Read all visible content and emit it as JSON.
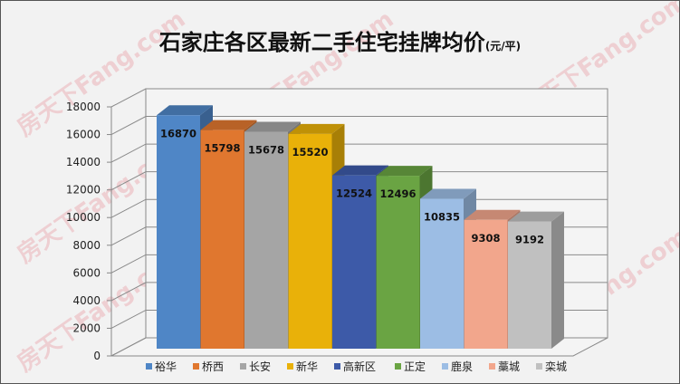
{
  "watermark": "房天下Fang.com",
  "chart_data": {
    "type": "bar",
    "title": "石家庄各区最新二手住宅挂牌均价",
    "unit": "(元/平)",
    "categories": [
      "裕华",
      "桥西",
      "长安",
      "新华",
      "高新区",
      "正定",
      "鹿泉",
      "藁城",
      "栾城"
    ],
    "values": [
      16870,
      15798,
      15678,
      15520,
      12524,
      12496,
      10835,
      9308,
      9192
    ],
    "colors": [
      "#4f86c6",
      "#e0772f",
      "#a5a5a5",
      "#e9b109",
      "#3d5aa8",
      "#6aa443",
      "#9cbde4",
      "#f2a68c",
      "#c0c0c0"
    ],
    "ylim": [
      0,
      18000
    ],
    "yticks": [
      0,
      2000,
      4000,
      6000,
      8000,
      10000,
      12000,
      14000,
      16000,
      18000
    ],
    "grid": true,
    "legend": "bottom",
    "style": "3d"
  }
}
